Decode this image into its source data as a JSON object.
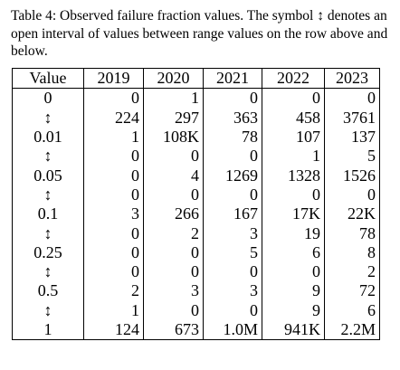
{
  "caption": "Table 4: Observed failure fraction values. The symbol ↕ denotes an open interval of values between range values on the row above and below.",
  "table": {
    "headers": [
      "Value",
      "2019",
      "2020",
      "2021",
      "2022",
      "2023"
    ],
    "rows": [
      [
        "0",
        "0",
        "1",
        "0",
        "0",
        "0"
      ],
      [
        "↕",
        "224",
        "297",
        "363",
        "458",
        "3761"
      ],
      [
        "0.01",
        "1",
        "108K",
        "78",
        "107",
        "137"
      ],
      [
        "↕",
        "0",
        "0",
        "0",
        "1",
        "5"
      ],
      [
        "0.05",
        "0",
        "4",
        "1269",
        "1328",
        "1526"
      ],
      [
        "↕",
        "0",
        "0",
        "0",
        "0",
        "0"
      ],
      [
        "0.1",
        "3",
        "266",
        "167",
        "17K",
        "22K"
      ],
      [
        "↕",
        "0",
        "2",
        "3",
        "19",
        "78"
      ],
      [
        "0.25",
        "0",
        "0",
        "5",
        "6",
        "8"
      ],
      [
        "↕",
        "0",
        "0",
        "0",
        "0",
        "2"
      ],
      [
        "0.5",
        "2",
        "3",
        "3",
        "9",
        "72"
      ],
      [
        "↕",
        "1",
        "0",
        "0",
        "9",
        "6"
      ],
      [
        "1",
        "124",
        "673",
        "1.0M",
        "941K",
        "2.2M"
      ]
    ]
  }
}
